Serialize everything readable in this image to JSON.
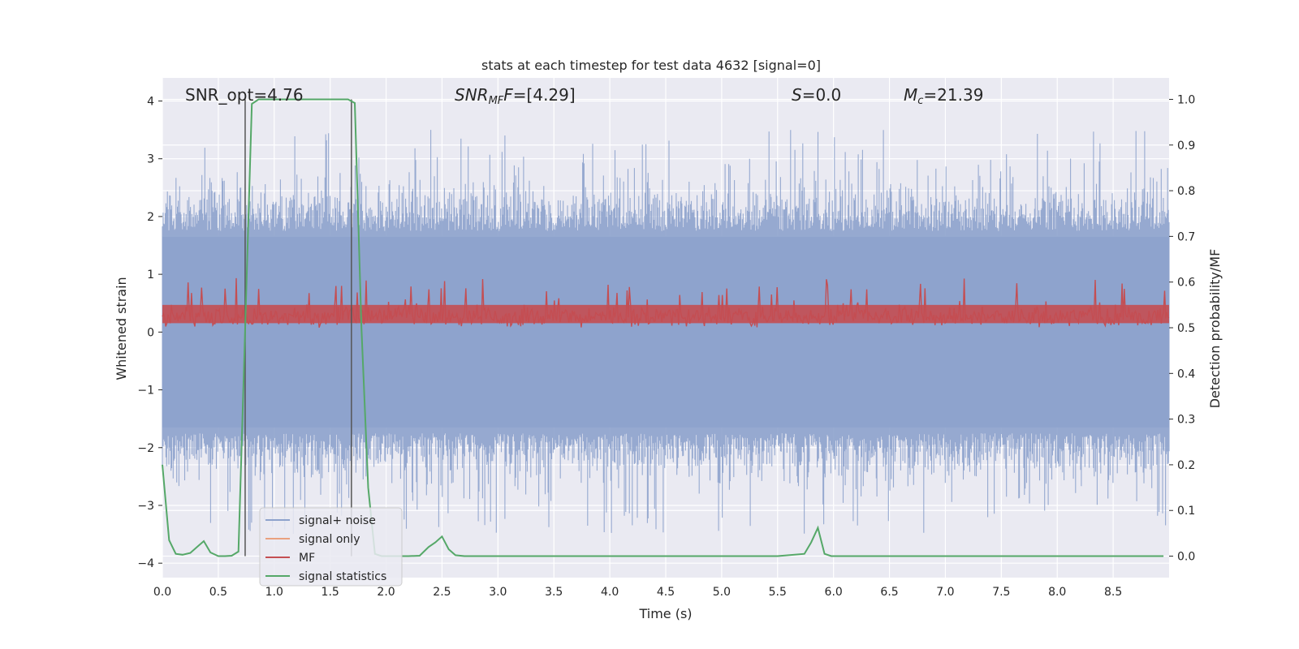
{
  "chart_data": {
    "type": "line",
    "title": "stats at each timestep for test data 4632 [signal=0]",
    "xlabel": "Time (s)",
    "ylabel": "Whitened strain",
    "y2label": "Detection probability/MF",
    "xlim": [
      0,
      9.0
    ],
    "ylim": [
      -4.25,
      4.4
    ],
    "y2lim": [
      -0.047,
      1.047
    ],
    "x_ticks": [
      0.0,
      0.5,
      1.0,
      1.5,
      2.0,
      2.5,
      3.0,
      3.5,
      4.0,
      4.5,
      5.0,
      5.5,
      6.0,
      6.5,
      7.0,
      7.5,
      8.0,
      8.5
    ],
    "x_tick_labels": [
      "0.0",
      "0.5",
      "1.0",
      "1.5",
      "2.0",
      "2.5",
      "3.0",
      "3.5",
      "4.0",
      "4.5",
      "5.0",
      "5.5",
      "6.0",
      "6.5",
      "7.0",
      "7.5",
      "8.0",
      "8.5"
    ],
    "y_ticks": [
      4,
      3,
      2,
      1,
      0,
      -1,
      -2,
      -3,
      -4
    ],
    "y_tick_labels": [
      "4",
      "3",
      "2",
      "1",
      "0",
      "−1",
      "−2",
      "−3",
      "−4"
    ],
    "y2_ticks": [
      1.0,
      0.9,
      0.8,
      0.7,
      0.6,
      0.5,
      0.4,
      0.3,
      0.2,
      0.1,
      0.0
    ],
    "y2_tick_labels": [
      "1.0",
      "0.9",
      "0.8",
      "0.7",
      "0.6",
      "0.5",
      "0.4",
      "0.3",
      "0.2",
      "0.1",
      "0.0"
    ],
    "grid": true,
    "legend_position": "lower-left",
    "annotations": {
      "snr_opt": "SNR_opt=4.76",
      "snr_mf_main": "SNR",
      "snr_mf_sub": "MF",
      "snr_mf_rest": "=[4.29]",
      "s_italic": "S",
      "s_rest": "=0.0",
      "mc_main": "M",
      "mc_sub": "c",
      "mc_rest": "=21.39"
    },
    "vertical_markers": [
      0.74,
      1.69
    ],
    "series": [
      {
        "name": "signal+ noise",
        "color": "#8da2cc",
        "description": "whitened strain noise, roughly between -3.2 and 3.2, with spikes up to 4.0",
        "envelope": {
          "typical_abs": 1.9,
          "peak_max": 4.0,
          "peak_min": -3.9
        }
      },
      {
        "name": "signal only",
        "color": "#eaa17f",
        "x": [],
        "y": []
      },
      {
        "name": "MF",
        "color": "#c44e52",
        "axis": "right",
        "description": "matched filter output between about 0.5 and 0.58, peaks up to 0.6",
        "envelope": {
          "low": 0.495,
          "high": 0.58,
          "peak": 0.61
        }
      },
      {
        "name": "signal statistics",
        "color": "#55a868",
        "axis": "right",
        "x": [
          0.0,
          0.06,
          0.12,
          0.18,
          0.25,
          0.31,
          0.37,
          0.43,
          0.5,
          0.56,
          0.62,
          0.68,
          0.74,
          0.8,
          0.86,
          0.92,
          1.0,
          1.1,
          1.2,
          1.3,
          1.4,
          1.5,
          1.6,
          1.66,
          1.72,
          1.78,
          1.84,
          1.9,
          1.96,
          2.02,
          2.1,
          2.2,
          2.3,
          2.38,
          2.44,
          2.5,
          2.56,
          2.62,
          2.7,
          3.0,
          3.5,
          4.0,
          4.5,
          5.0,
          5.5,
          5.74,
          5.8,
          5.86,
          5.92,
          5.98,
          6.1,
          6.5,
          7.0,
          7.5,
          8.0,
          8.5,
          8.95
        ],
        "y": [
          0.2,
          0.035,
          0.005,
          0.003,
          0.007,
          0.02,
          0.033,
          0.008,
          0.0,
          0.0,
          0.001,
          0.01,
          0.5,
          0.99,
          1.0,
          1.0,
          1.0,
          1.0,
          1.0,
          1.0,
          1.0,
          1.0,
          1.0,
          1.0,
          0.992,
          0.5,
          0.15,
          0.005,
          0.0,
          0.0,
          0.0,
          0.0,
          0.001,
          0.02,
          0.03,
          0.043,
          0.015,
          0.002,
          0.0,
          0.0,
          0.0,
          0.0,
          0.0,
          0.0,
          0.0,
          0.005,
          0.03,
          0.062,
          0.005,
          0.0,
          0.0,
          0.0,
          0.0,
          0.0,
          0.0,
          0.0,
          0.0
        ]
      }
    ]
  }
}
